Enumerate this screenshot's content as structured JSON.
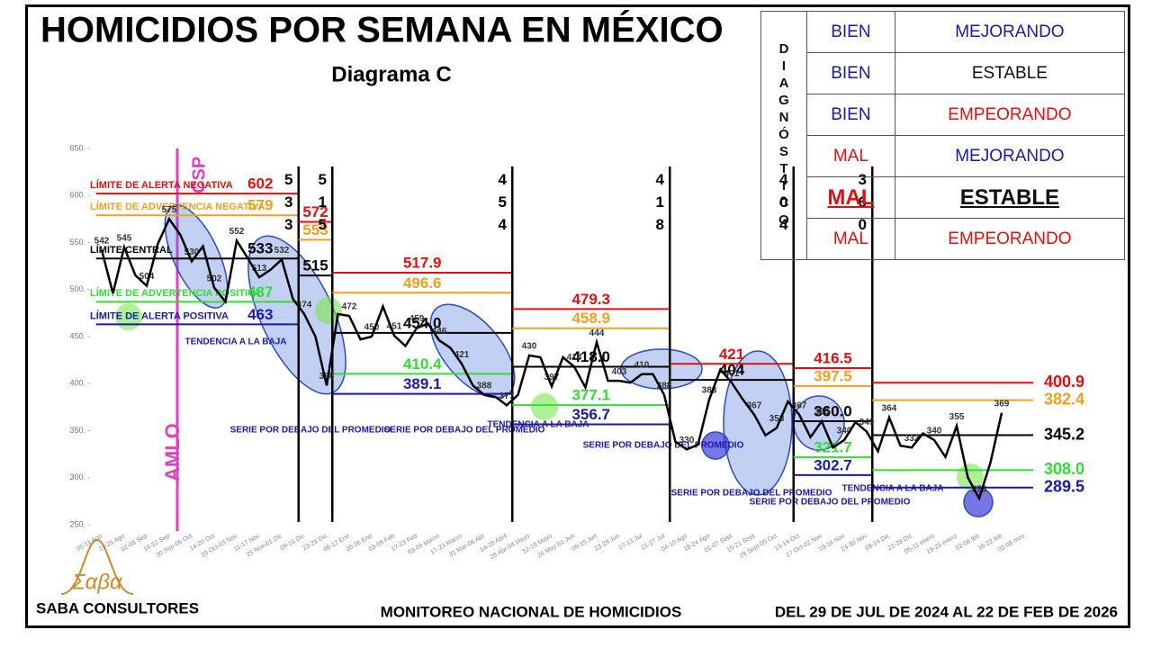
{
  "title": "HOMICIDIOS POR SEMANA EN MÉXICO",
  "subtitle": "Diagrama C",
  "footer": {
    "left": "SABA CONSULTORES",
    "logo": "Σαβα",
    "center": "MONITOREO NACIONAL DE HOMICIDIOS",
    "right": "DEL 29 DE JUL DE 2024 AL 22 DE FEB DE 2026"
  },
  "diagnostico": {
    "label": "DIAGNÓSTICO",
    "rows": [
      [
        "BIEN",
        "MEJORANDO"
      ],
      [
        "BIEN",
        "ESTABLE"
      ],
      [
        "BIEN",
        "EMPEORANDO"
      ],
      [
        "MAL",
        "MEJORANDO"
      ],
      [
        "MAL",
        "ESTABLE"
      ],
      [
        "MAL",
        "EMPEORANDO"
      ]
    ]
  },
  "chart_data": {
    "type": "line",
    "categories": [
      "05-11 Ago",
      null,
      "19-25 Ago",
      null,
      "02-08 Sep",
      null,
      "16-22 Sep",
      null,
      "30 Sep-06 Oct",
      null,
      "14-20 Oct",
      null,
      "28 Oct-03 Nov",
      null,
      "11-17 Nov",
      null,
      "25 Nov-01 Dic",
      null,
      "09-15 Dic",
      null,
      "23-29 Dic",
      null,
      "06-12 Ene",
      null,
      "20-26 Ene",
      null,
      "03-09 Feb",
      null,
      "17-23 Feb",
      null,
      "03-09 Marzo",
      null,
      "17-23 Marzo",
      null,
      "31 Mar-06 Abr",
      null,
      "14-20 Abril",
      null,
      "28 Abr-04 Mayo",
      null,
      "12-18 Mayo",
      null,
      "26 May-01 Jun",
      null,
      "09-15 Jun",
      null,
      "23-29 Jun",
      null,
      "07-13 Jul",
      null,
      "21-27 Jul",
      null,
      "04-10 Ago",
      null,
      "18-24 Ago",
      null,
      "01-07 Sept",
      null,
      "15-21 Sept",
      null,
      "29 Sept-05 Oct",
      null,
      "13-19 Oct",
      null,
      "27 Oct-02 Nov",
      null,
      "10-16 Nov",
      null,
      "24-30 Nov",
      null,
      "08-14 Dic",
      null,
      "22-28 Dic",
      null,
      "05-11 enero",
      null,
      "19-25 enero",
      null,
      "02-08 feb",
      null,
      "16-22 feb",
      null,
      "02-08 mzo"
    ],
    "series": [
      {
        "color": "#000000",
        "values": [
          542,
          496,
          545,
          515,
          504,
          549,
          575,
          558,
          530,
          546,
          502,
          487,
          552,
          533,
          513,
          521,
          532,
          490,
          474,
          450,
          398,
          474,
          472,
          447,
          450,
          482,
          451,
          440,
          459,
          464,
          446,
          438,
          421,
          398,
          388,
          386,
          377,
          388,
          430,
          428,
          397,
          428,
          418,
          396,
          444,
          403,
          403,
          401,
          410,
          410,
          388,
          338,
          330,
          335,
          383,
          415,
          401,
          383,
          367,
          345,
          353,
          381,
          367,
          343,
          360,
          332,
          340,
          359,
          349,
          328,
          364,
          334,
          332,
          347,
          340,
          322,
          355,
          300,
          278,
          316,
          369,
          null,
          null
        ]
      }
    ],
    "ylim": [
      250,
      650
    ],
    "yticks": [
      {
        "value": 250,
        "label": "250."
      },
      {
        "value": 300,
        "label": "300."
      },
      {
        "value": 350,
        "label": "350."
      },
      {
        "value": 400,
        "label": "400."
      },
      {
        "value": 450,
        "label": "450."
      },
      {
        "value": 500,
        "label": "500."
      },
      {
        "value": 550,
        "label": "550."
      },
      {
        "value": 600,
        "label": "600."
      },
      {
        "value": 650,
        "label": "650."
      }
    ],
    "limit_names": [
      "LÍMITE DE ALERTA NEGATIVA",
      "LÍMITE DE ADVERTENCIA NEGATIVA",
      "LÍMITE CENTRAL",
      "LÍMITE DE ADVERTENCIA POSITIVA",
      "LÍMITE DE ALERTA POSITIVA"
    ],
    "segments": [
      {
        "from": 0,
        "to": 17,
        "break_label": 533,
        "limits": [
          {
            "value": 602,
            "color": "#e01010"
          },
          {
            "value": 579,
            "color": "#f0a020"
          },
          {
            "value": 533,
            "color": "#000000"
          },
          {
            "value": 487,
            "color": "#33dd33"
          },
          {
            "value": 463,
            "color": "#1a1aa6"
          }
        ]
      },
      {
        "from": 18,
        "to": 20,
        "break_label": 515,
        "limits": [
          {
            "value": 572,
            "color": "#e01010"
          },
          {
            "value": 553,
            "color": "#f0a020"
          },
          {
            "value": 515,
            "color": "#000000"
          }
        ]
      },
      {
        "from": 21,
        "to": 36,
        "break_label": 454,
        "limits": [
          {
            "value": 517.9,
            "color": "#e01010"
          },
          {
            "value": 496.6,
            "color": "#f0a020"
          },
          {
            "value": 454,
            "label": "454.0",
            "color": "#000000"
          },
          {
            "value": 410.4,
            "color": "#33dd33"
          },
          {
            "value": 389.1,
            "color": "#1a1aa6"
          }
        ]
      },
      {
        "from": 37,
        "to": 50,
        "break_label": 418,
        "limits": [
          {
            "value": 479.3,
            "color": "#e01010"
          },
          {
            "value": 458.9,
            "color": "#f0a020"
          },
          {
            "value": 418,
            "label": "418.0",
            "color": "#000000"
          },
          {
            "value": 377.1,
            "color": "#33dd33"
          },
          {
            "value": 356.7,
            "color": "#1a1aa6"
          }
        ]
      },
      {
        "from": 51,
        "to": 61,
        "break_label": 404,
        "limits": [
          {
            "value": 421,
            "color": "#e01010"
          },
          {
            "value": 404,
            "color": "#000000"
          }
        ]
      },
      {
        "from": 62,
        "to": 68,
        "break_label": 360,
        "limits": [
          {
            "value": 416.5,
            "color": "#e01010"
          },
          {
            "value": 397.5,
            "color": "#f0a020"
          },
          {
            "value": 360,
            "label": "360.0",
            "color": "#000000"
          },
          {
            "value": 321.7,
            "color": "#33dd33"
          },
          {
            "value": 302.7,
            "color": "#1a1aa6"
          }
        ]
      },
      {
        "from": 69,
        "to": 80,
        "limits": [
          {
            "value": 400.9,
            "color": "#e01010"
          },
          {
            "value": 382.4,
            "color": "#f0a020"
          },
          {
            "value": 345.2,
            "color": "#000000"
          },
          {
            "value": 308,
            "label": "308.0",
            "color": "#33dd33"
          },
          {
            "value": 289.5,
            "color": "#1a1aa6"
          }
        ]
      }
    ],
    "annotations": {
      "amlo": "AMLO",
      "csp": "CSP",
      "trend1": "TENDENCIA A LA BAJA",
      "trend2": "TENDENCIA A LA BAJA",
      "trend3": "TENDENCIA A LA BAJA",
      "below1": "SERIE POR DEBAJO DEL PROMEDIO",
      "below2": "SERIE POR DEBAJO DEL PROMEDIO",
      "below3": "SERIE POR DEBAJO DEL PROMEDIO",
      "below4": "SERIE POR DEBAJO DEL PROMEDIO",
      "below5": "SERIE POR DEBAJO DEL PROMEDIO"
    }
  }
}
